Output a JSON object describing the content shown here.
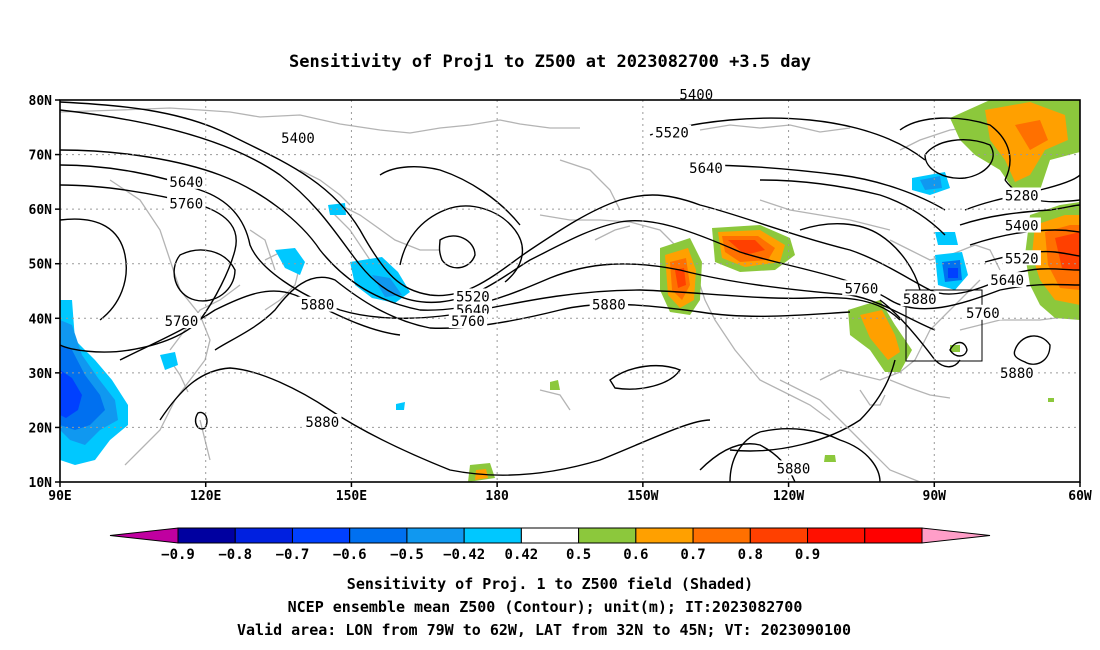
{
  "title": "Sensitivity of Proj1 to Z500 at 2023082700 +3.5 day",
  "map": {
    "y_labels": [
      "80N",
      "70N",
      "60N",
      "50N",
      "40N",
      "30N",
      "20N",
      "10N"
    ],
    "x_labels": [
      "90E",
      "120E",
      "150E",
      "180",
      "150W",
      "120W",
      "90W",
      "60W"
    ],
    "contour_labels": [
      {
        "text": "5400",
        "lon": 139,
        "lat": 73
      },
      {
        "text": "5640",
        "lon": 116,
        "lat": 65
      },
      {
        "text": "5760",
        "lon": 116,
        "lat": 61
      },
      {
        "text": "5880",
        "lon": 143,
        "lat": 42.5
      },
      {
        "text": "5760",
        "lon": 115,
        "lat": 39.5
      },
      {
        "text": "5880",
        "lon": 144,
        "lat": 21
      },
      {
        "text": "5520",
        "lon": 175,
        "lat": 44
      },
      {
        "text": "5640",
        "lon": 175,
        "lat": 41.5
      },
      {
        "text": "5760",
        "lon": 174,
        "lat": 39.5
      },
      {
        "text": "5880",
        "lon": -157,
        "lat": 42.5
      },
      {
        "text": "5400",
        "lon": -139,
        "lat": 81
      },
      {
        "text": "5520",
        "lon": -144,
        "lat": 74
      },
      {
        "text": "5640",
        "lon": -137,
        "lat": 67.5
      },
      {
        "text": "5760",
        "lon": -105,
        "lat": 45.5
      },
      {
        "text": "5880",
        "lon": -93,
        "lat": 43.5
      },
      {
        "text": "5880",
        "lon": -119,
        "lat": 12.5
      },
      {
        "text": "5280",
        "lon": -72,
        "lat": 62.5
      },
      {
        "text": "5400",
        "lon": -72,
        "lat": 57
      },
      {
        "text": "5520",
        "lon": -72,
        "lat": 51
      },
      {
        "text": "5640",
        "lon": -75,
        "lat": 47
      },
      {
        "text": "5760",
        "lon": -80,
        "lat": 41
      },
      {
        "text": "5880",
        "lon": -73,
        "lat": 30
      }
    ]
  },
  "colorbar": {
    "colors": [
      "#c000a0",
      "#0000a0",
      "#0020e0",
      "#0040ff",
      "#0070f0",
      "#1098f0",
      "#00c8ff",
      "#ffffff",
      "#8cc83c",
      "#ffa000",
      "#ff7000",
      "#ff4000",
      "#ff1000",
      "#ff0000",
      "#ff9ec8"
    ],
    "labels": [
      "-0.9",
      "-0.8",
      "-0.7",
      "-0.6",
      "-0.5",
      "-0.42",
      "0.42",
      "0.5",
      "0.6",
      "0.7",
      "0.8",
      "0.9"
    ]
  },
  "footer": {
    "line1": "Sensitivity of Proj. 1 to Z500 field (Shaded)",
    "line2": "NCEP ensemble mean Z500 (Contour); unit(m); IT:2023082700",
    "line3": "Valid area: LON from 79W to 62W, LAT from 32N to 45N; VT: 2023090100"
  }
}
